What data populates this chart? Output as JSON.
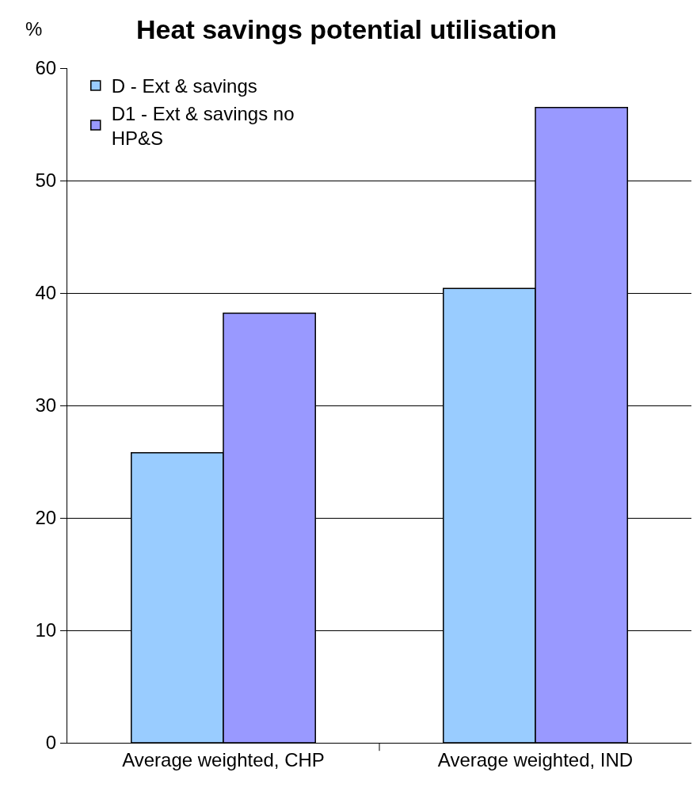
{
  "chart_data": {
    "type": "bar",
    "title": "Heat savings potential utilisation",
    "ylabel": "%",
    "categories": [
      "Average weighted, CHP",
      "Average weighted, IND"
    ],
    "series": [
      {
        "name": "D - Ext & savings",
        "color": "#99ccff",
        "values": [
          25.8,
          40.4
        ]
      },
      {
        "name": "D1 - Ext & savings no HP&S",
        "color": "#9999ff",
        "values": [
          38.2,
          56.5
        ]
      }
    ],
    "ylim": [
      0,
      60
    ],
    "yticks": [
      0,
      10,
      20,
      30,
      40,
      50,
      60
    ],
    "grid": "y",
    "legend": "top left"
  }
}
